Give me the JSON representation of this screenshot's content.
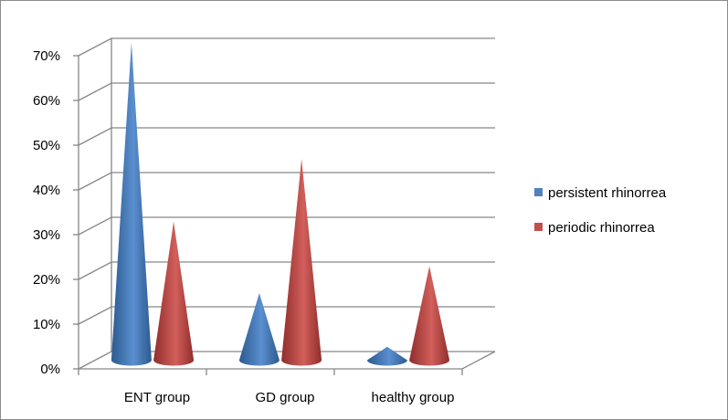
{
  "chart_data": {
    "type": "bar",
    "style": "3d-cone",
    "categories": [
      "ENT group",
      "GD group",
      "healthy group"
    ],
    "series": [
      {
        "name": "persistent rhinorrea",
        "color": "#4f81bd",
        "values": [
          0.71,
          0.15,
          0.03
        ]
      },
      {
        "name": "periodic rhinorrea",
        "color": "#c0504d",
        "values": [
          0.31,
          0.45,
          0.21
        ]
      }
    ],
    "ylim": [
      0,
      0.7
    ],
    "yticks": [
      "0%",
      "10%",
      "20%",
      "30%",
      "40%",
      "50%",
      "60%",
      "70%"
    ],
    "grid": true,
    "legend_position": "right"
  }
}
